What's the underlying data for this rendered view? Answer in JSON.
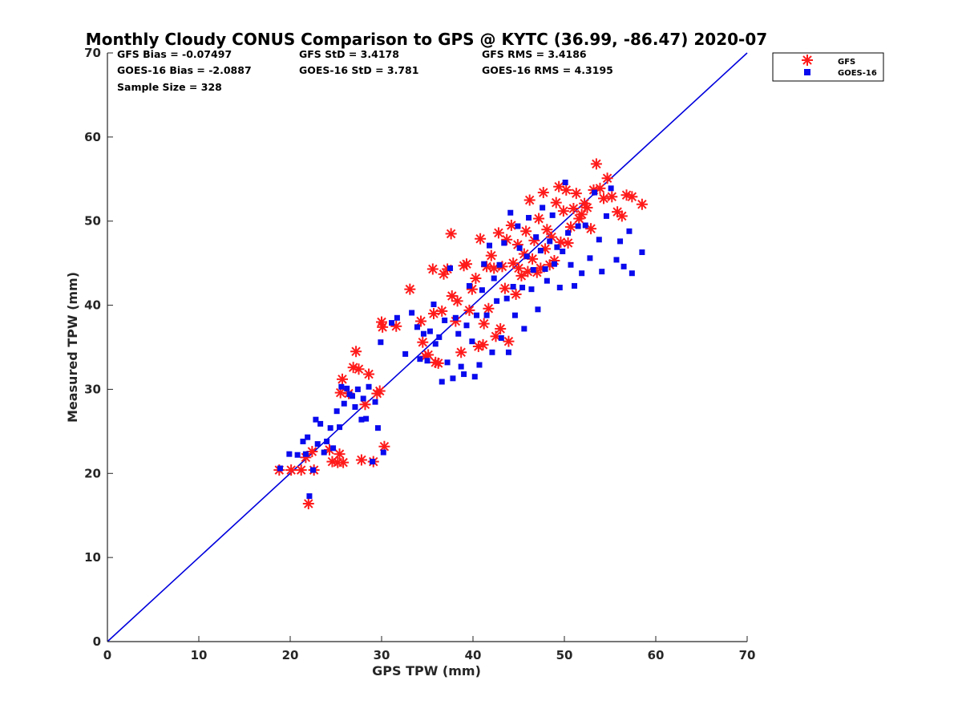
{
  "chart_data": {
    "type": "scatter",
    "title": "Monthly Cloudy CONUS Comparison to GPS @ KYTC (36.99, -86.47) 2020-07",
    "xlabel": "GPS TPW (mm)",
    "ylabel": "Measured TPW (mm)",
    "xlim": [
      0,
      70
    ],
    "ylim": [
      0,
      70
    ],
    "xticks": [
      "0",
      "10",
      "20",
      "30",
      "40",
      "50",
      "60",
      "70"
    ],
    "yticks": [
      "0",
      "10",
      "20",
      "30",
      "40",
      "50",
      "60",
      "70"
    ],
    "grid": false,
    "legend_position": "outside top-right",
    "stats": {
      "gfs_bias": "GFS Bias = -0.07497",
      "gfs_std": "GFS StD = 3.4178",
      "gfs_rms": "GFS RMS = 3.4186",
      "goes_bias": "GOES-16 Bias = -2.0887",
      "goes_std": "GOES-16 StD = 3.781",
      "goes_rms": "GOES-16 RMS = 4.3195",
      "sample_size": "Sample Size = 328"
    },
    "reference_line": {
      "name": "1:1 line",
      "x": [
        0,
        70
      ],
      "y": [
        0,
        70
      ],
      "color": "#0000dd"
    },
    "series": [
      {
        "name": "GFS",
        "marker": "asterisk",
        "color": "#ff1a1a",
        "points": [
          [
            18.8,
            20.4
          ],
          [
            20.1,
            20.4
          ],
          [
            21.2,
            20.4
          ],
          [
            22.6,
            20.4
          ],
          [
            22,
            16.4
          ],
          [
            21.7,
            21.9
          ],
          [
            22.4,
            22.6
          ],
          [
            24.3,
            22.8
          ],
          [
            24.6,
            21.4
          ],
          [
            25.2,
            21.3
          ],
          [
            25.4,
            22.3
          ],
          [
            25.8,
            21.3
          ],
          [
            25.5,
            29.6
          ],
          [
            25.7,
            31.2
          ],
          [
            26.4,
            29.5
          ],
          [
            26.9,
            32.6
          ],
          [
            27.2,
            34.5
          ],
          [
            27.5,
            32.4
          ],
          [
            27.8,
            21.6
          ],
          [
            28.2,
            28.2
          ],
          [
            28.6,
            31.8
          ],
          [
            29.1,
            21.4
          ],
          [
            29.5,
            29.5
          ],
          [
            29.8,
            29.8
          ],
          [
            30.1,
            37.4
          ],
          [
            30,
            38
          ],
          [
            30.3,
            23.2
          ],
          [
            31.6,
            37.5
          ],
          [
            33.1,
            41.9
          ],
          [
            34.3,
            38.1
          ],
          [
            34.5,
            35.6
          ],
          [
            34.8,
            33.9
          ],
          [
            35.1,
            34.1
          ],
          [
            35.6,
            44.3
          ],
          [
            35.7,
            39
          ],
          [
            35.9,
            33.2
          ],
          [
            36.2,
            33.1
          ],
          [
            36.6,
            39.3
          ],
          [
            36.8,
            43.7
          ],
          [
            37.2,
            44.3
          ],
          [
            37.6,
            48.5
          ],
          [
            37.7,
            41.1
          ],
          [
            38.1,
            38.1
          ],
          [
            38.3,
            40.5
          ],
          [
            38.7,
            34.4
          ],
          [
            39,
            44.7
          ],
          [
            39.3,
            44.9
          ],
          [
            39.6,
            39.4
          ],
          [
            39.9,
            41.9
          ],
          [
            40.3,
            43.2
          ],
          [
            40.6,
            35.1
          ],
          [
            40.8,
            47.9
          ],
          [
            41.1,
            35.3
          ],
          [
            41.2,
            37.8
          ],
          [
            41.5,
            44.6
          ],
          [
            41.7,
            39.6
          ],
          [
            42,
            45.9
          ],
          [
            42.3,
            44.4
          ],
          [
            42.5,
            36.3
          ],
          [
            42.8,
            48.6
          ],
          [
            43,
            37.2
          ],
          [
            43.2,
            44.6
          ],
          [
            43.5,
            42
          ],
          [
            43.7,
            47.8
          ],
          [
            43.9,
            35.7
          ],
          [
            44.2,
            49.5
          ],
          [
            44.4,
            45
          ],
          [
            44.7,
            41.3
          ],
          [
            44.9,
            47.2
          ],
          [
            45,
            44.4
          ],
          [
            45.3,
            43.5
          ],
          [
            45.6,
            46.1
          ],
          [
            45.8,
            48.8
          ],
          [
            46,
            44
          ],
          [
            46.2,
            52.5
          ],
          [
            46.5,
            45.5
          ],
          [
            46.7,
            47.7
          ],
          [
            47,
            43.9
          ],
          [
            47.2,
            50.3
          ],
          [
            47.4,
            44.4
          ],
          [
            47.7,
            53.4
          ],
          [
            47.9,
            46.7
          ],
          [
            48.1,
            49
          ],
          [
            48.4,
            44.8
          ],
          [
            48.6,
            48.1
          ],
          [
            48.9,
            45.3
          ],
          [
            49.1,
            52.2
          ],
          [
            49.4,
            54.1
          ],
          [
            49.6,
            47.5
          ],
          [
            49.9,
            51.2
          ],
          [
            50.2,
            53.7
          ],
          [
            50.4,
            47.4
          ],
          [
            50.7,
            49.3
          ],
          [
            51,
            51.5
          ],
          [
            51.3,
            53.3
          ],
          [
            51.6,
            50.3
          ],
          [
            51.9,
            50.8
          ],
          [
            52.2,
            52.1
          ],
          [
            52.5,
            51.6
          ],
          [
            52.9,
            49.1
          ],
          [
            53.2,
            53.7
          ],
          [
            53.5,
            56.8
          ],
          [
            53.9,
            53.9
          ],
          [
            54.3,
            52.7
          ],
          [
            54.7,
            55.1
          ],
          [
            55.2,
            52.9
          ],
          [
            55.8,
            51.1
          ],
          [
            56.3,
            50.6
          ],
          [
            56.8,
            53.1
          ],
          [
            57.4,
            52.9
          ],
          [
            58.5,
            52
          ]
        ]
      },
      {
        "name": "GOES-16",
        "marker": "square",
        "color": "#0a0aee",
        "points": [
          [
            18.9,
            20.6
          ],
          [
            19.9,
            22.3
          ],
          [
            20.8,
            22.2
          ],
          [
            21.4,
            23.8
          ],
          [
            21.7,
            22.3
          ],
          [
            21.9,
            24.3
          ],
          [
            22.1,
            17.3
          ],
          [
            22.5,
            20.4
          ],
          [
            22.8,
            26.4
          ],
          [
            23,
            23.5
          ],
          [
            23.3,
            25.9
          ],
          [
            23.7,
            22.5
          ],
          [
            24,
            23.8
          ],
          [
            24.4,
            25.4
          ],
          [
            24.7,
            23
          ],
          [
            25.1,
            27.4
          ],
          [
            25.4,
            25.5
          ],
          [
            25.6,
            30.3
          ],
          [
            25.9,
            28.3
          ],
          [
            26.2,
            30.1
          ],
          [
            26.5,
            29.4
          ],
          [
            26.8,
            29.2
          ],
          [
            27.1,
            27.9
          ],
          [
            27.4,
            30
          ],
          [
            27.8,
            26.4
          ],
          [
            28,
            28.9
          ],
          [
            28.3,
            26.5
          ],
          [
            28.6,
            30.3
          ],
          [
            29,
            21.4
          ],
          [
            29.3,
            28.5
          ],
          [
            29.6,
            25.4
          ],
          [
            29.9,
            35.6
          ],
          [
            30.2,
            22.5
          ],
          [
            31.1,
            37.9
          ],
          [
            31.7,
            38.5
          ],
          [
            32.6,
            34.2
          ],
          [
            33.3,
            39.1
          ],
          [
            33.9,
            37.4
          ],
          [
            34.2,
            33.6
          ],
          [
            34.6,
            36.6
          ],
          [
            35,
            33.4
          ],
          [
            35.3,
            36.9
          ],
          [
            35.7,
            40.1
          ],
          [
            35.9,
            35.4
          ],
          [
            36.3,
            36.2
          ],
          [
            36.6,
            30.9
          ],
          [
            36.9,
            38.2
          ],
          [
            37.2,
            33.2
          ],
          [
            37.5,
            44.4
          ],
          [
            37.8,
            31.3
          ],
          [
            38.1,
            38.5
          ],
          [
            38.4,
            36.6
          ],
          [
            38.7,
            32.7
          ],
          [
            39,
            31.8
          ],
          [
            39.3,
            37.6
          ],
          [
            39.6,
            42.3
          ],
          [
            39.9,
            35.7
          ],
          [
            40.2,
            31.5
          ],
          [
            40.4,
            38.8
          ],
          [
            40.7,
            32.9
          ],
          [
            41,
            41.8
          ],
          [
            41.2,
            44.9
          ],
          [
            41.5,
            38.8
          ],
          [
            41.8,
            47.1
          ],
          [
            42.1,
            34.4
          ],
          [
            42.3,
            43.2
          ],
          [
            42.6,
            40.5
          ],
          [
            42.9,
            44.8
          ],
          [
            43.1,
            36.1
          ],
          [
            43.4,
            47.4
          ],
          [
            43.7,
            40.8
          ],
          [
            43.9,
            34.4
          ],
          [
            44.1,
            51
          ],
          [
            44.4,
            42.2
          ],
          [
            44.6,
            38.8
          ],
          [
            44.9,
            49.4
          ],
          [
            45.1,
            46.8
          ],
          [
            45.4,
            42.1
          ],
          [
            45.6,
            37.2
          ],
          [
            45.9,
            45.8
          ],
          [
            46.1,
            50.4
          ],
          [
            46.4,
            41.9
          ],
          [
            46.6,
            44.2
          ],
          [
            46.9,
            48.1
          ],
          [
            47.1,
            39.5
          ],
          [
            47.4,
            46.5
          ],
          [
            47.6,
            51.6
          ],
          [
            47.9,
            44.3
          ],
          [
            48.1,
            42.9
          ],
          [
            48.4,
            47.6
          ],
          [
            48.7,
            50.7
          ],
          [
            48.9,
            44.9
          ],
          [
            49.2,
            46.9
          ],
          [
            49.5,
            42.1
          ],
          [
            49.8,
            46.4
          ],
          [
            50.1,
            54.6
          ],
          [
            50.4,
            48.6
          ],
          [
            50.7,
            44.8
          ],
          [
            51.1,
            42.3
          ],
          [
            51.5,
            49.4
          ],
          [
            51.9,
            43.8
          ],
          [
            52.3,
            49.5
          ],
          [
            52.8,
            45.6
          ],
          [
            53.3,
            53.4
          ],
          [
            53.8,
            47.8
          ],
          [
            54.1,
            44
          ],
          [
            54.6,
            50.6
          ],
          [
            55.1,
            53.9
          ],
          [
            55.7,
            45.4
          ],
          [
            56.1,
            47.6
          ],
          [
            56.5,
            44.6
          ],
          [
            57.1,
            48.8
          ],
          [
            57.4,
            43.8
          ],
          [
            58.5,
            46.3
          ]
        ]
      }
    ]
  }
}
